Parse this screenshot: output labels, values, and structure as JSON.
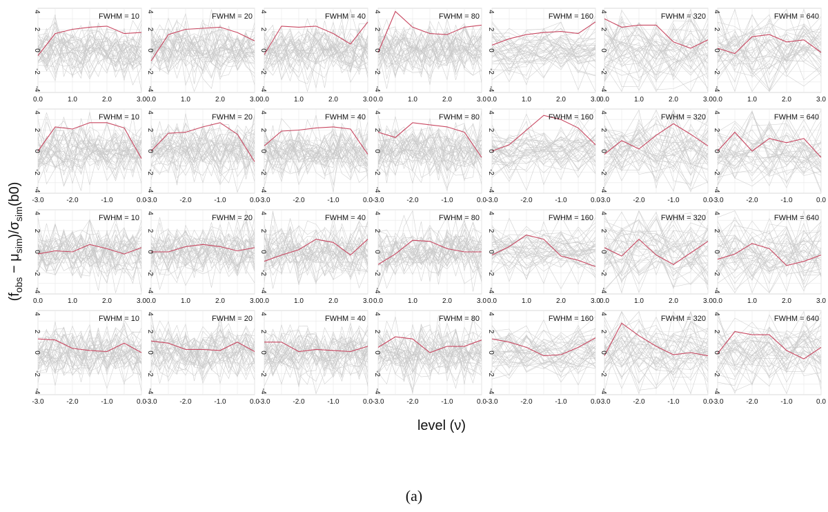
{
  "figure": {
    "ylabel_main": "(f",
    "ylabel_sub1": "obs",
    "ylabel_mid": " − μ",
    "ylabel_sub2": "sim",
    "ylabel_mid2": ")/σ",
    "ylabel_sub3": "sim",
    "ylabel_end": "(b0)",
    "xlabel": "level (ν)",
    "caption": "(a)"
  },
  "chart_data": {
    "type": "line",
    "layout": "4 rows x 7 columns of small multiples",
    "colors": {
      "simulation": "#c8c8c8",
      "observed": "#c8455f",
      "grid": "#ececec"
    },
    "ylim": [
      -4,
      4
    ],
    "yticks": [
      "4",
      "2",
      "0",
      "-2",
      "-4"
    ],
    "panel_titles": [
      "FWHM = 10",
      "FWHM = 20",
      "FWHM = 40",
      "FWHM = 80",
      "FWHM = 160",
      "FWHM = 320",
      "FWHM = 640"
    ],
    "rows": [
      {
        "xlim": [
          0,
          3
        ],
        "xticks": [
          "0.0",
          "1.0",
          "2.0",
          "3.0"
        ],
        "x": [
          0,
          0.5,
          1,
          1.5,
          2,
          2.5,
          3
        ],
        "observed": [
          [
            -0.5,
            1.6,
            2.0,
            2.2,
            2.3,
            1.6,
            1.7
          ],
          [
            -1.0,
            1.5,
            2.0,
            2.1,
            2.2,
            1.7,
            0.9
          ],
          [
            -0.4,
            2.3,
            2.2,
            2.3,
            1.6,
            0.6,
            2.7
          ],
          [
            -0.2,
            3.7,
            2.2,
            1.6,
            1.5,
            2.2,
            2.4
          ],
          [
            0.5,
            1.1,
            1.5,
            1.7,
            1.8,
            1.6,
            2.7
          ],
          [
            3.0,
            2.2,
            2.4,
            2.4,
            0.8,
            0.2,
            1.0
          ],
          [
            0.2,
            -0.3,
            1.3,
            1.5,
            0.8,
            1.0,
            -0.2
          ]
        ]
      },
      {
        "xlim": [
          -3,
          0
        ],
        "xticks": [
          "-3.0",
          "-2.0",
          "-1.0",
          "0.0"
        ],
        "x": [
          -3,
          -2.5,
          -2,
          -1.5,
          -1,
          -0.5,
          0
        ],
        "observed": [
          [
            0.0,
            2.3,
            2.1,
            2.7,
            2.7,
            2.2,
            -0.7
          ],
          [
            0.0,
            1.7,
            1.8,
            2.3,
            2.7,
            1.6,
            -1.0
          ],
          [
            0.5,
            1.9,
            2.0,
            2.2,
            2.3,
            2.1,
            -0.3
          ],
          [
            1.8,
            1.3,
            2.7,
            2.5,
            2.3,
            1.8,
            -0.6
          ],
          [
            0.0,
            0.6,
            2.0,
            3.4,
            3.0,
            2.2,
            0.6
          ],
          [
            -0.3,
            1.0,
            0.2,
            1.5,
            2.6,
            1.6,
            0.5
          ],
          [
            0.0,
            1.8,
            0.0,
            1.2,
            0.8,
            1.2,
            -0.6
          ]
        ]
      },
      {
        "xlim": [
          0,
          3
        ],
        "xticks": [
          "0.0",
          "1.0",
          "2.0",
          "3.0"
        ],
        "x": [
          0,
          0.5,
          1,
          1.5,
          2,
          2.5,
          3
        ],
        "observed": [
          [
            -0.2,
            0.1,
            0.0,
            0.7,
            0.3,
            -0.2,
            0.4
          ],
          [
            0.0,
            0.0,
            0.5,
            0.7,
            0.5,
            0.1,
            0.4
          ],
          [
            -0.9,
            -0.3,
            0.2,
            1.2,
            0.9,
            -0.3,
            1.2
          ],
          [
            -1.2,
            -0.2,
            1.1,
            1.0,
            0.3,
            0.0,
            0.0
          ],
          [
            -0.3,
            0.5,
            1.6,
            1.2,
            -0.4,
            -0.8,
            -1.4
          ],
          [
            0.4,
            -0.4,
            1.2,
            -0.3,
            -1.2,
            -0.1,
            1.0
          ],
          [
            -0.7,
            -0.2,
            0.8,
            0.3,
            -1.3,
            -0.9,
            -0.3
          ]
        ]
      },
      {
        "xlim": [
          -3,
          0
        ],
        "xticks": [
          "-3.0",
          "-2.0",
          "-1.0",
          "0.0"
        ],
        "x": [
          -3,
          -2.5,
          -2,
          -1.5,
          -1,
          -0.5,
          0
        ],
        "observed": [
          [
            1.3,
            1.2,
            0.4,
            0.2,
            0.1,
            0.9,
            0.0
          ],
          [
            1.1,
            0.9,
            0.3,
            0.3,
            0.2,
            1.0,
            0.1
          ],
          [
            1.0,
            1.0,
            0.1,
            0.3,
            0.2,
            0.1,
            0.6
          ],
          [
            0.5,
            1.5,
            1.3,
            0.0,
            0.6,
            0.6,
            1.2
          ],
          [
            1.3,
            1.0,
            0.5,
            -0.3,
            -0.2,
            0.5,
            1.4
          ],
          [
            -0.3,
            2.8,
            1.6,
            0.6,
            -0.2,
            0.0,
            -0.3
          ],
          [
            -0.1,
            2.0,
            1.7,
            1.7,
            0.2,
            -0.6,
            0.5
          ]
        ]
      }
    ]
  }
}
